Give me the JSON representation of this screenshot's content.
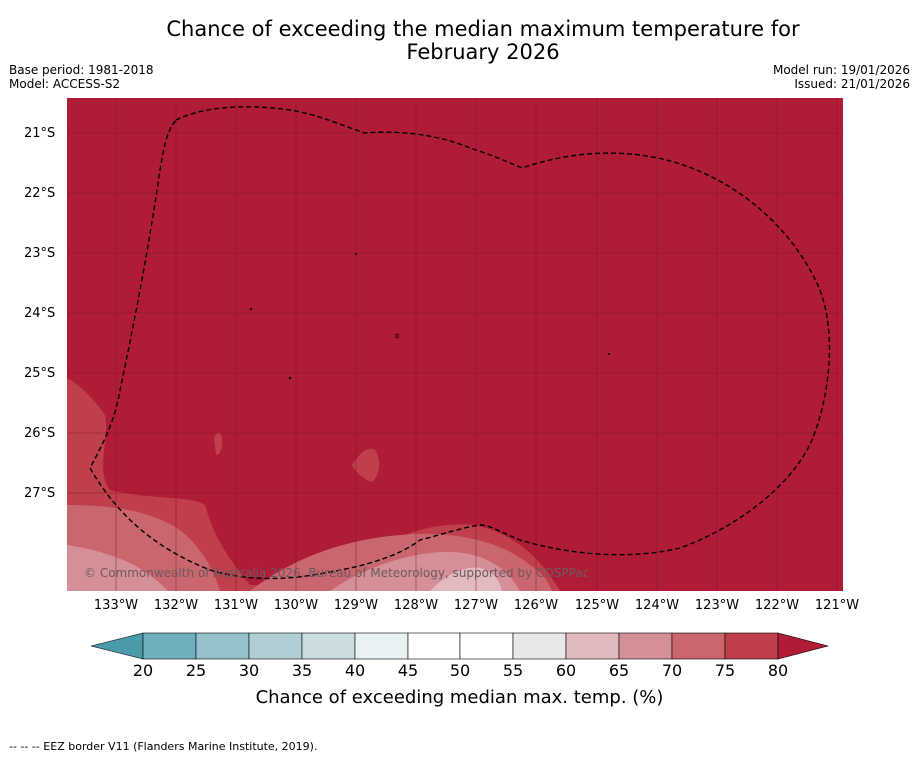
{
  "title_line1": "Chance of exceeding the median maximum temperature for",
  "title_line2": "February 2026",
  "base_period": "Base period: 1981-2018",
  "model": "Model: ACCESS-S2",
  "model_run": "Model run: 19/01/2026",
  "issued": "Issued: 21/01/2026",
  "copyright": "© Commonwealth of Australia 2026, Bureau of Meteorology, supported by COSPPac",
  "lat_labels": [
    "21°S",
    "22°S",
    "23°S",
    "24°S",
    "25°S",
    "26°S",
    "27°S"
  ],
  "lon_labels": [
    "133°W",
    "132°W",
    "131°W",
    "130°W",
    "129°W",
    "128°W",
    "127°W",
    "126°W",
    "125°W",
    "124°W",
    "123°W",
    "122°W",
    "121°W"
  ],
  "colorbar": {
    "ticks": [
      "20",
      "25",
      "30",
      "35",
      "40",
      "45",
      "50",
      "55",
      "60",
      "65",
      "70",
      "75",
      "80"
    ],
    "label": "Chance of exceeding median max. temp. (%)",
    "colors": [
      "#4a9aac",
      "#6fb0bf",
      "#93c2cc",
      "#b0ced4",
      "#ccdde1",
      "#e8f1f3",
      "#ffffff",
      "#ffffff",
      "#e8e8e8",
      "#e2b9bf",
      "#d58f97",
      "#ca666f",
      "#bf3f4c",
      "#b01c38"
    ]
  },
  "footnote": "--  --  -- EEZ border V11 (Flanders Marine Institute, 2019)."
}
